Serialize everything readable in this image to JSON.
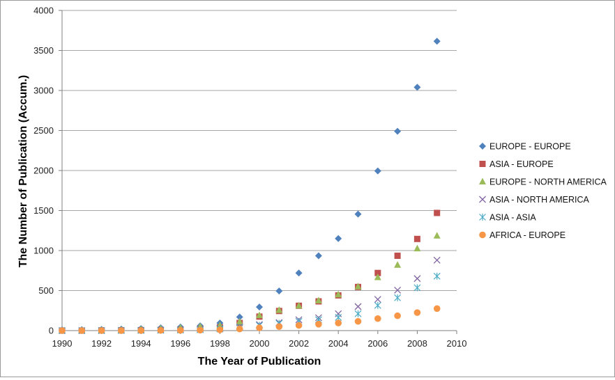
{
  "chart_data": {
    "type": "scatter",
    "title": "",
    "xlabel": "The Year of Publication",
    "ylabel": "The Number of  Publication (Accum.)",
    "xlim": [
      1990,
      2010
    ],
    "ylim": [
      0,
      4000
    ],
    "x_ticks": [
      "1990",
      "1992",
      "1994",
      "1996",
      "1998",
      "2000",
      "2002",
      "2004",
      "2006",
      "2008",
      "2010"
    ],
    "y_ticks": [
      "0",
      "500",
      "1000",
      "1500",
      "2000",
      "2500",
      "3000",
      "3500",
      "4000"
    ],
    "grid": "horizontal",
    "legend_position": "right",
    "x": [
      1990,
      1991,
      1992,
      1993,
      1994,
      1995,
      1996,
      1997,
      1998,
      1999,
      2000,
      2001,
      2002,
      2003,
      2004,
      2005,
      2006,
      2007,
      2008,
      2009
    ],
    "series": [
      {
        "name": "EUROPE - EUROPE",
        "marker": "diamond",
        "color": "#4f81bd",
        "values": [
          10,
          12,
          14,
          18,
          25,
          35,
          45,
          60,
          95,
          170,
          295,
          495,
          720,
          935,
          1150,
          1455,
          1995,
          2490,
          3040,
          3615
        ]
      },
      {
        "name": "ASIA - EUROPE",
        "marker": "square",
        "color": "#c0504d",
        "values": [
          0,
          0,
          2,
          3,
          5,
          8,
          12,
          20,
          40,
          95,
          175,
          245,
          310,
          365,
          440,
          545,
          720,
          935,
          1145,
          1470
        ]
      },
      {
        "name": "EUROPE - NORTH AMERICA",
        "marker": "triangle",
        "color": "#9bbb59",
        "values": [
          0,
          2,
          4,
          8,
          15,
          25,
          35,
          50,
          65,
          110,
          190,
          255,
          310,
          375,
          450,
          550,
          665,
          820,
          1025,
          1185
        ]
      },
      {
        "name": "ASIA - NORTH AMERICA",
        "marker": "x",
        "color": "#8064a2",
        "values": [
          0,
          0,
          0,
          2,
          4,
          6,
          9,
          15,
          25,
          45,
          75,
          100,
          135,
          160,
          210,
          300,
          390,
          505,
          650,
          880
        ]
      },
      {
        "name": "ASIA - ASIA",
        "marker": "star",
        "color": "#4bacc6",
        "values": [
          0,
          0,
          0,
          1,
          2,
          4,
          6,
          10,
          20,
          40,
          65,
          90,
          115,
          135,
          165,
          210,
          315,
          410,
          535,
          680
        ]
      },
      {
        "name": "AFRICA - EUROPE",
        "marker": "circle",
        "color": "#f79646",
        "values": [
          0,
          0,
          0,
          0,
          1,
          2,
          3,
          6,
          10,
          20,
          35,
          50,
          65,
          80,
          95,
          115,
          150,
          185,
          225,
          275
        ]
      }
    ]
  }
}
